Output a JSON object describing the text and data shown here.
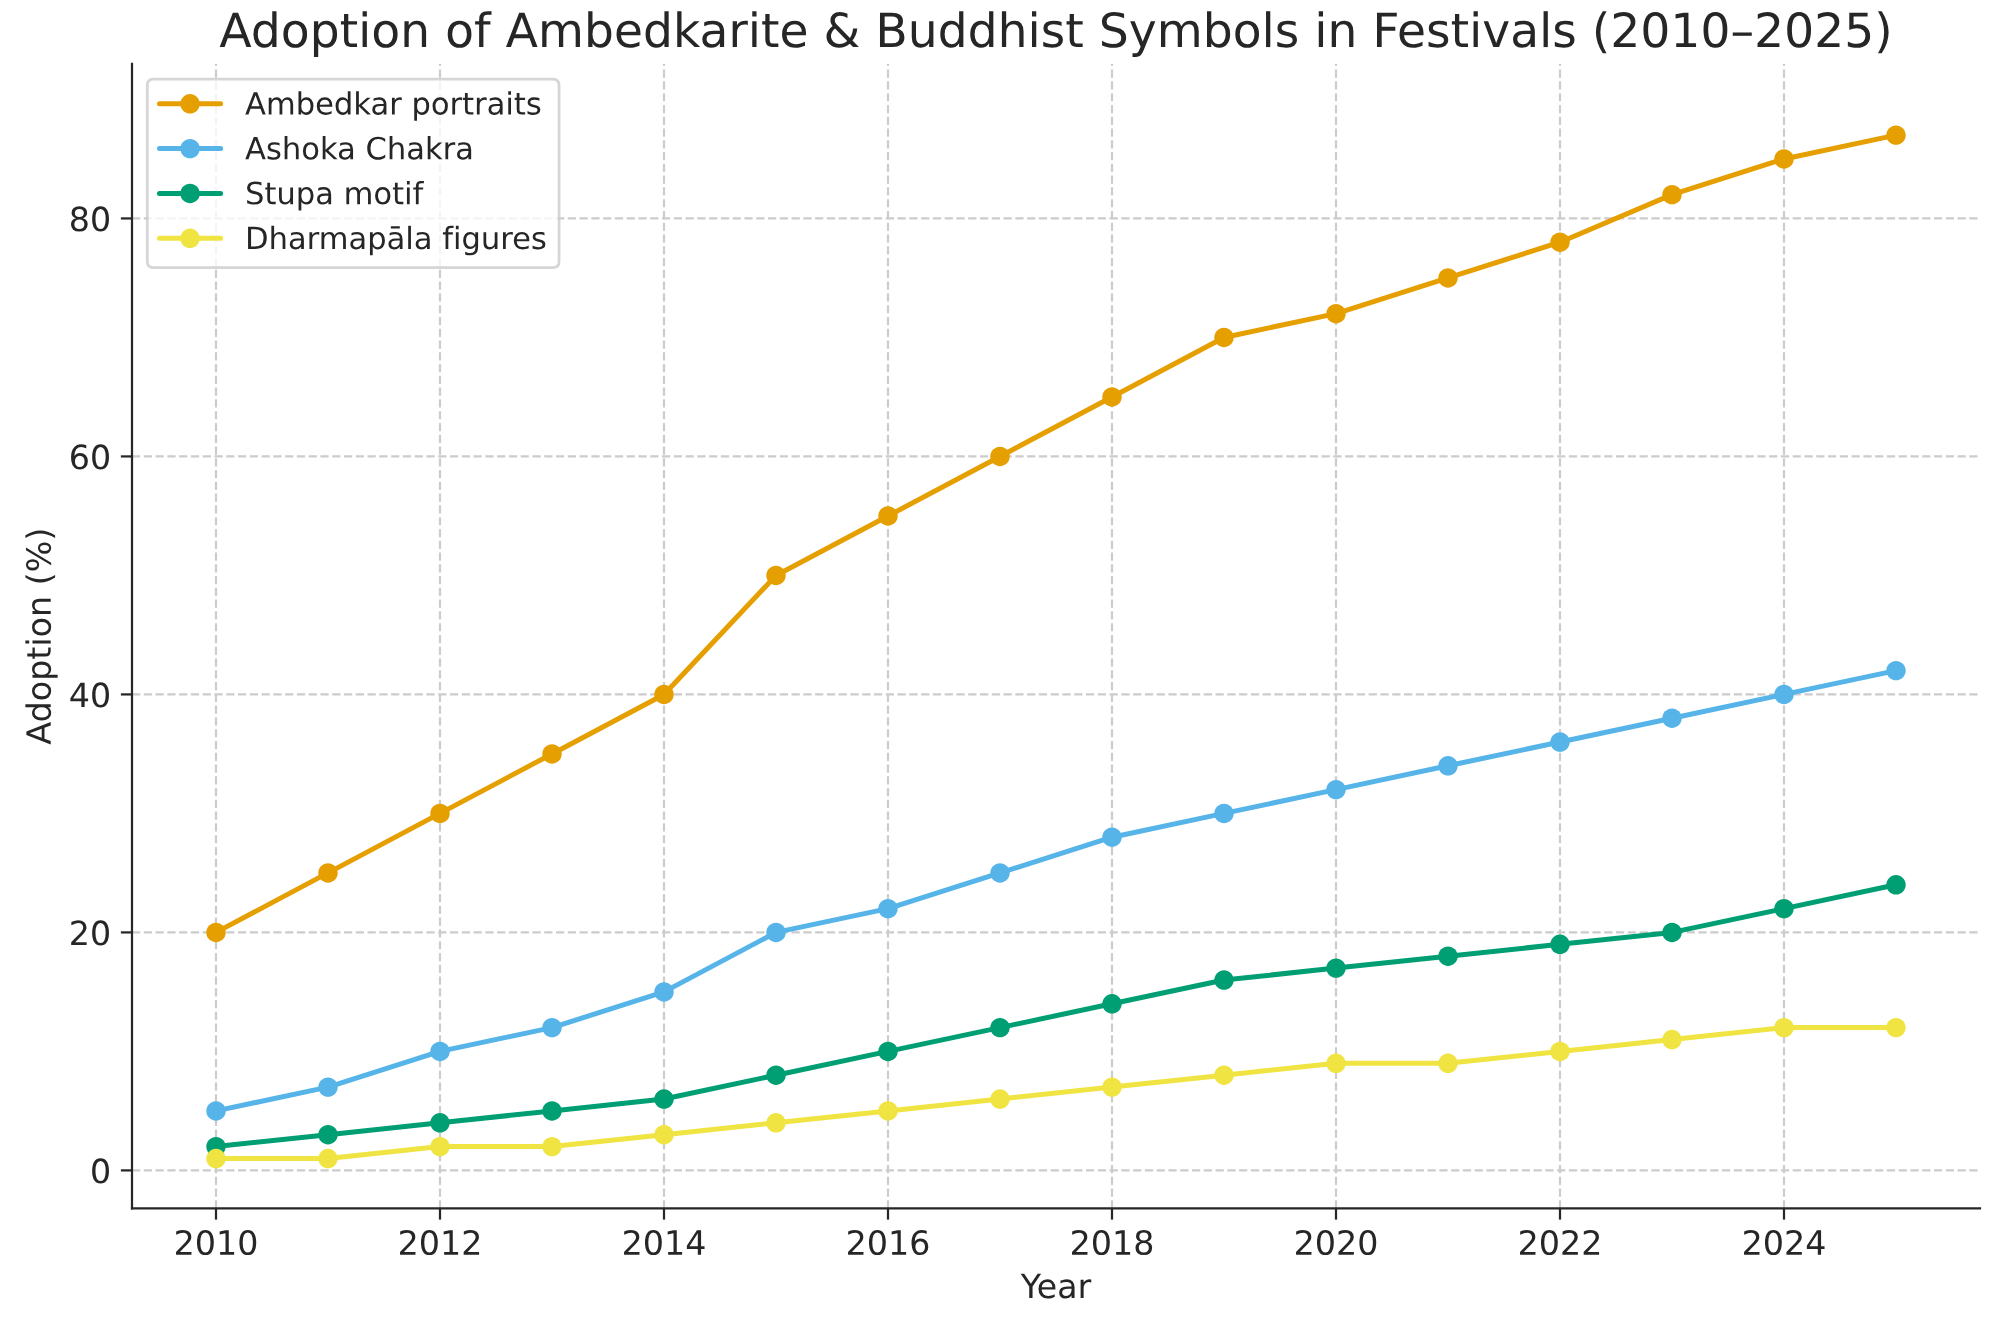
{
  "chart_data": {
    "type": "line",
    "title": "Adoption of Ambedkarite & Buddhist Symbols in Festivals (2010–2025)",
    "xlabel": "Year",
    "ylabel": "Adoption (%)",
    "x": [
      2010,
      2011,
      2012,
      2013,
      2014,
      2015,
      2016,
      2017,
      2018,
      2019,
      2020,
      2021,
      2022,
      2023,
      2024,
      2025
    ],
    "series": [
      {
        "name": "Ambedkar portraits",
        "color": "#e69f00",
        "values": [
          20,
          25,
          30,
          35,
          40,
          50,
          55,
          60,
          65,
          70,
          72,
          75,
          78,
          82,
          85,
          87
        ]
      },
      {
        "name": "Ashoka Chakra",
        "color": "#56b4e9",
        "values": [
          5,
          7,
          10,
          12,
          15,
          20,
          22,
          25,
          28,
          30,
          32,
          34,
          36,
          38,
          40,
          42
        ]
      },
      {
        "name": "Stupa motif",
        "color": "#009e73",
        "values": [
          2,
          3,
          4,
          5,
          6,
          8,
          10,
          12,
          14,
          16,
          17,
          18,
          19,
          20,
          22,
          24
        ]
      },
      {
        "name": "Dharmapāla figures",
        "color": "#f0e442",
        "values": [
          1,
          1,
          2,
          2,
          3,
          4,
          5,
          6,
          7,
          8,
          9,
          9,
          10,
          11,
          12,
          12
        ]
      }
    ],
    "xlim": [
      2009.25,
      2025.75
    ],
    "xticks": [
      2010,
      2012,
      2014,
      2016,
      2018,
      2020,
      2022,
      2024
    ],
    "ylim": [
      -3.2,
      93
    ],
    "yticks": [
      0,
      20,
      40,
      60,
      80
    ],
    "grid": true,
    "legend": "top left",
    "marker": "circle",
    "line_style": "solid"
  }
}
